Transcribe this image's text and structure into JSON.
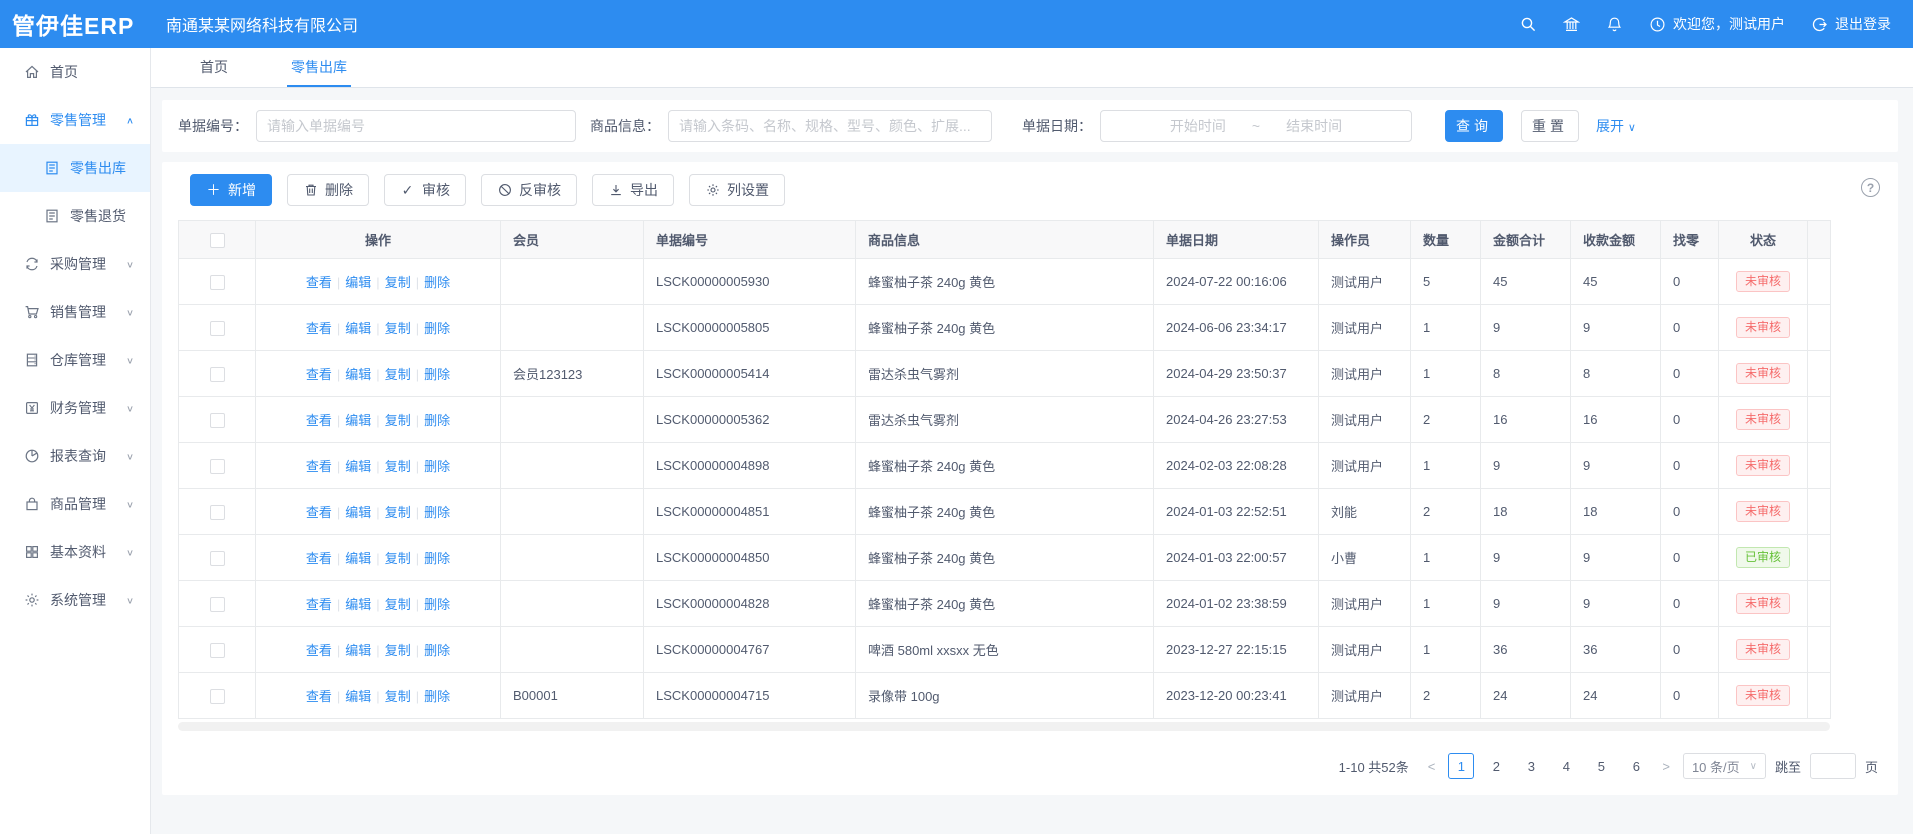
{
  "app": {
    "logo": "管伊佳ERP",
    "company": "南通某某网络科技有限公司",
    "accent_color": "#2d8cf0"
  },
  "header": {
    "icons": [
      "search-icon",
      "bank-icon",
      "bell-icon"
    ],
    "welcome": "欢迎您，测试用户",
    "logout": "退出登录"
  },
  "tabs": [
    {
      "label": "首页",
      "active": false
    },
    {
      "label": "零售出库",
      "active": true
    }
  ],
  "sidebar": [
    {
      "label": "首页",
      "icon": "home-icon",
      "level": 0
    },
    {
      "label": "零售管理",
      "icon": "retail-icon",
      "level": 0,
      "blue": true,
      "chevron": "up"
    },
    {
      "label": "零售出库",
      "icon": "doc-icon",
      "level": 1,
      "blue": true,
      "selected": true
    },
    {
      "label": "零售退货",
      "icon": "doc-icon",
      "level": 1
    },
    {
      "label": "采购管理",
      "icon": "purchase-icon",
      "level": 0,
      "chevron": "down"
    },
    {
      "label": "销售管理",
      "icon": "cart-icon",
      "level": 0,
      "chevron": "down"
    },
    {
      "label": "仓库管理",
      "icon": "warehouse-icon",
      "level": 0,
      "chevron": "down"
    },
    {
      "label": "财务管理",
      "icon": "finance-icon",
      "level": 0,
      "chevron": "down"
    },
    {
      "label": "报表查询",
      "icon": "report-icon",
      "level": 0,
      "chevron": "down"
    },
    {
      "label": "商品管理",
      "icon": "goods-icon",
      "level": 0,
      "chevron": "down"
    },
    {
      "label": "基本资料",
      "icon": "grid-icon",
      "level": 0,
      "chevron": "down"
    },
    {
      "label": "系统管理",
      "icon": "gear-icon",
      "level": 0,
      "chevron": "down"
    }
  ],
  "filters": {
    "order_no_label": "单据编号：",
    "order_no_placeholder": "请输入单据编号",
    "product_label": "商品信息：",
    "product_placeholder": "请输入条码、名称、规格、型号、颜色、扩展...",
    "date_label": "单据日期：",
    "date_start_placeholder": "开始时间",
    "date_separator": "~",
    "date_end_placeholder": "结束时间",
    "search_button": "查询",
    "reset_button": "重置",
    "expand_link": "展开"
  },
  "toolbar": {
    "add": "新增",
    "delete": "删除",
    "audit": "审核",
    "unaudit": "反审核",
    "export": "导出",
    "columns": "列设置"
  },
  "table": {
    "columns": [
      "操作",
      "会员",
      "单据编号",
      "商品信息",
      "单据日期",
      "操作员",
      "数量",
      "金额合计",
      "收款金额",
      "找零",
      "状态"
    ],
    "row_actions": [
      "查看",
      "编辑",
      "复制",
      "删除"
    ],
    "rows": [
      {
        "member": "",
        "order_no": "LSCK00000005930",
        "product": "蜂蜜柚子茶 240g 黄色",
        "date": "2024-07-22 00:16:06",
        "operator": "测试用户",
        "qty": "5",
        "amount": "45",
        "received": "45",
        "change": "0",
        "status": "未审核",
        "status_type": "error"
      },
      {
        "member": "",
        "order_no": "LSCK00000005805",
        "product": "蜂蜜柚子茶 240g 黄色",
        "date": "2024-06-06 23:34:17",
        "operator": "测试用户",
        "qty": "1",
        "amount": "9",
        "received": "9",
        "change": "0",
        "status": "未审核",
        "status_type": "error"
      },
      {
        "member": "会员123123",
        "order_no": "LSCK00000005414",
        "product": "雷达杀虫气雾剂",
        "date": "2024-04-29 23:50:37",
        "operator": "测试用户",
        "qty": "1",
        "amount": "8",
        "received": "8",
        "change": "0",
        "status": "未审核",
        "status_type": "error"
      },
      {
        "member": "",
        "order_no": "LSCK00000005362",
        "product": "雷达杀虫气雾剂",
        "date": "2024-04-26 23:27:53",
        "operator": "测试用户",
        "qty": "2",
        "amount": "16",
        "received": "16",
        "change": "0",
        "status": "未审核",
        "status_type": "error"
      },
      {
        "member": "",
        "order_no": "LSCK00000004898",
        "product": "蜂蜜柚子茶 240g 黄色",
        "date": "2024-02-03 22:08:28",
        "operator": "测试用户",
        "qty": "1",
        "amount": "9",
        "received": "9",
        "change": "0",
        "status": "未审核",
        "status_type": "error"
      },
      {
        "member": "",
        "order_no": "LSCK00000004851",
        "product": "蜂蜜柚子茶 240g 黄色",
        "date": "2024-01-03 22:52:51",
        "operator": "刘能",
        "qty": "2",
        "amount": "18",
        "received": "18",
        "change": "0",
        "status": "未审核",
        "status_type": "error"
      },
      {
        "member": "",
        "order_no": "LSCK00000004850",
        "product": "蜂蜜柚子茶 240g 黄色",
        "date": "2024-01-03 22:00:57",
        "operator": "小曹",
        "qty": "1",
        "amount": "9",
        "received": "9",
        "change": "0",
        "status": "已审核",
        "status_type": "success"
      },
      {
        "member": "",
        "order_no": "LSCK00000004828",
        "product": "蜂蜜柚子茶 240g 黄色",
        "date": "2024-01-02 23:38:59",
        "operator": "测试用户",
        "qty": "1",
        "amount": "9",
        "received": "9",
        "change": "0",
        "status": "未审核",
        "status_type": "error"
      },
      {
        "member": "",
        "order_no": "LSCK00000004767",
        "product": "啤酒 580ml xxsxx 无色",
        "date": "2023-12-27 22:15:15",
        "operator": "测试用户",
        "qty": "1",
        "amount": "36",
        "received": "36",
        "change": "0",
        "status": "未审核",
        "status_type": "error"
      },
      {
        "member": "B00001",
        "order_no": "LSCK00000004715",
        "product": "录像带 100g",
        "date": "2023-12-20 00:23:41",
        "operator": "测试用户",
        "qty": "2",
        "amount": "24",
        "received": "24",
        "change": "0",
        "status": "未审核",
        "status_type": "error"
      }
    ]
  },
  "status_colors": {
    "error": {
      "text": "#f56c6c",
      "bg": "#fef0f0",
      "border": "#fbc4c4"
    },
    "success": {
      "text": "#67c23a",
      "bg": "#f0f9eb",
      "border": "#c2e7b0"
    }
  },
  "pagination": {
    "total": "1-10 共52条",
    "pages": [
      "1",
      "2",
      "3",
      "4",
      "5",
      "6"
    ],
    "active_page": "1",
    "page_size": "10 条/页",
    "jump_label": "跳至",
    "jump_suffix": "页"
  }
}
